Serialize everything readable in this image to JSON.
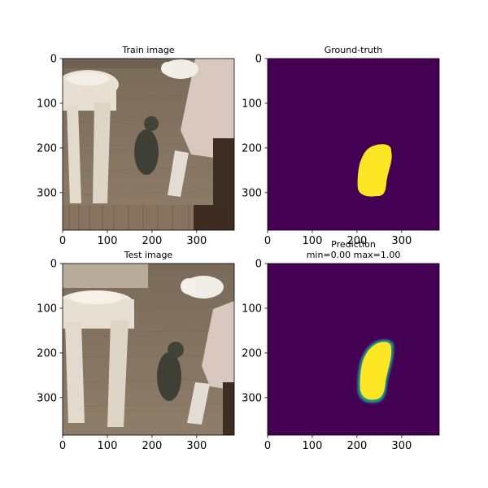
{
  "figure": {
    "background": "#ffffff",
    "colors": {
      "mask_background": "#440154",
      "mask_foreground": "#fde725",
      "mask_edge": "#21918c",
      "floor": "#8a7a66",
      "stool": "#e6dfd2",
      "cat_dark": "#3e4038",
      "cat_white": "#f0ece6",
      "tablecloth": "#d8c8c0"
    }
  },
  "panels": [
    {
      "key": "train_image",
      "title_lines": [
        "Train image"
      ],
      "content": "photo",
      "shows_white_cat_top": true
    },
    {
      "key": "ground_truth",
      "title_lines": [
        "Ground-truth"
      ],
      "content": "mask",
      "soft_edge": false
    },
    {
      "key": "test_image",
      "title_lines": [
        "Test image"
      ],
      "content": "photo",
      "shows_white_cat_top": false
    },
    {
      "key": "prediction",
      "title_lines": [
        "Prediction",
        "min=0.00 max=1.00"
      ],
      "content": "mask",
      "soft_edge": true
    }
  ],
  "chart_data": [
    {
      "type": "heatmap",
      "title": "Train image",
      "xlim": [
        0,
        384
      ],
      "ylim": [
        384,
        0
      ],
      "x_ticks": [
        0,
        100,
        200,
        300
      ],
      "y_ticks": [
        0,
        100,
        200,
        300
      ],
      "content": "RGB photo: dark fluffy cat sitting on carpet next to white plastic stool and table; white cat lying in background"
    },
    {
      "type": "heatmap",
      "title": "Ground-truth",
      "xlim": [
        0,
        384
      ],
      "ylim": [
        384,
        0
      ],
      "x_ticks": [
        0,
        100,
        200,
        300
      ],
      "y_ticks": [
        0,
        100,
        200,
        300
      ],
      "value_range": [
        0,
        1
      ],
      "mask_region": {
        "x": [
          202,
          280
        ],
        "y": [
          178,
          308
        ],
        "value": 1
      },
      "colormap": "viridis"
    },
    {
      "type": "heatmap",
      "title": "Test image",
      "xlim": [
        0,
        384
      ],
      "ylim": [
        384,
        0
      ],
      "x_ticks": [
        0,
        100,
        200,
        300
      ],
      "y_ticks": [
        0,
        100,
        200,
        300
      ],
      "content": "RGB photo: same scene, dark cat on carpet, white cat lying near table"
    },
    {
      "type": "heatmap",
      "title": "Prediction",
      "subtitle": "min=0.00 max=1.00",
      "xlim": [
        0,
        384
      ],
      "ylim": [
        384,
        0
      ],
      "x_ticks": [
        0,
        100,
        200,
        300
      ],
      "y_ticks": [
        0,
        100,
        200,
        300
      ],
      "value_range": [
        0.0,
        1.0
      ],
      "mask_region": {
        "x": [
          202,
          280
        ],
        "y": [
          178,
          312
        ],
        "value": 1
      },
      "colormap": "viridis"
    }
  ]
}
